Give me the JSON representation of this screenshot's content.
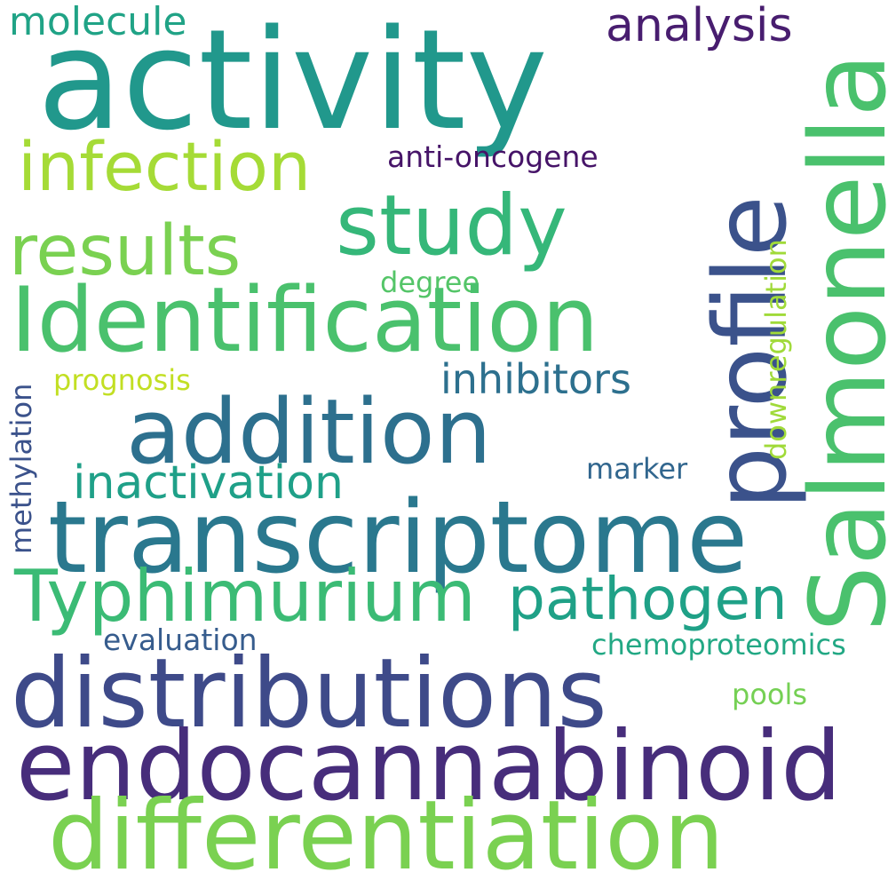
{
  "words": {
    "activity": {
      "text": "activity",
      "color": "#21988c"
    },
    "molecule": {
      "text": "molecule",
      "color": "#20a386"
    },
    "analysis": {
      "text": "analysis",
      "color": "#481d6f"
    },
    "infection": {
      "text": "infection",
      "color": "#a5db36"
    },
    "anti_oncogene": {
      "text": "anti-oncogene",
      "color": "#461468"
    },
    "study": {
      "text": "study",
      "color": "#35b779"
    },
    "results": {
      "text": "results",
      "color": "#7ad151"
    },
    "identification": {
      "text": "Identification",
      "color": "#4ac16d"
    },
    "degree": {
      "text": "degree",
      "color": "#54c568"
    },
    "inhibitors": {
      "text": "inhibitors",
      "color": "#2d708e"
    },
    "prognosis": {
      "text": "prognosis",
      "color": "#c2df23"
    },
    "addition": {
      "text": "addition",
      "color": "#2d708e"
    },
    "marker": {
      "text": "marker",
      "color": "#31668e"
    },
    "inactivation": {
      "text": "inactivation",
      "color": "#1fa088"
    },
    "transcriptome": {
      "text": "transcriptome",
      "color": "#2a788e"
    },
    "typhimurium": {
      "text": "Typhimurium",
      "color": "#3bbb75"
    },
    "pathogen": {
      "text": "pathogen",
      "color": "#1fa187"
    },
    "evaluation": {
      "text": "evaluation",
      "color": "#365c8d"
    },
    "chemoproteomics": {
      "text": "chemoproteomics",
      "color": "#22a884"
    },
    "distributions": {
      "text": "distributions",
      "color": "#3e4a89"
    },
    "pools": {
      "text": "pools",
      "color": "#75d054"
    },
    "endocannabinoid": {
      "text": "endocannabinoid",
      "color": "#472d7b"
    },
    "differentiation": {
      "text": "differentiation",
      "color": "#7ad151"
    },
    "profile": {
      "text": "profile",
      "color": "#3b528b"
    },
    "salmonella": {
      "text": "Salmonella",
      "color": "#4ac16d"
    },
    "downregulation": {
      "text": "downregulation",
      "color": "#a0da39"
    },
    "methylation": {
      "text": "methylation",
      "color": "#3b528b"
    }
  }
}
